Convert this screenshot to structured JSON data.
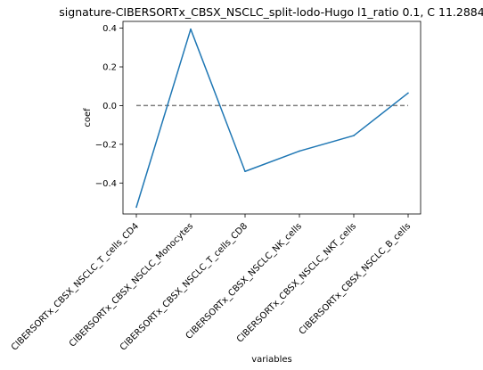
{
  "chart_data": {
    "type": "line",
    "title": "signature-CIBERSORTx_CBSX_NSCLC_split-lodo-Hugo l1_ratio 0.1, C 11.2884",
    "xlabel": "variables",
    "ylabel": "coef",
    "categories": [
      "CIBERSORTx_CBSX_NSCLC_T_cells_CD4",
      "CIBERSORTx_CBSX_NSCLC_Monocytes",
      "CIBERSORTx_CBSX_NSCLC_T_cells_CD8",
      "CIBERSORTx_CBSX_NSCLC_NK_cells",
      "CIBERSORTx_CBSX_NSCLC_NKT_cells",
      "CIBERSORTx_CBSX_NSCLC_B_cells"
    ],
    "series": [
      {
        "values": [
          -0.525,
          0.395,
          -0.34,
          -0.235,
          -0.155,
          0.065
        ],
        "color": "#1f77b4"
      }
    ],
    "reference_line": {
      "y": 0.0,
      "style": "dashed",
      "color": "#808080"
    },
    "yticks": [
      "−0.4",
      "−0.2",
      "0.0",
      "0.2",
      "0.4"
    ],
    "ytick_values": [
      -0.4,
      -0.2,
      0.0,
      0.2,
      0.4
    ],
    "ylim": [
      -0.56,
      0.435
    ],
    "grid": false,
    "legend": "none"
  }
}
